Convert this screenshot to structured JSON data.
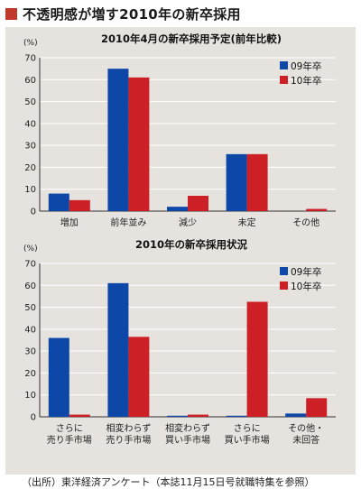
{
  "header": {
    "title": "不透明感が増す2010年の新卒採用"
  },
  "footer": {
    "source": "（出所）東洋経済アンケート（本誌11月15日号就職特集を参照）"
  },
  "colors": {
    "series_09": "#0d47a8",
    "series_10": "#cc1f26",
    "accent": "#c0392b",
    "panel": "#e6e3df"
  },
  "chart_data": [
    {
      "type": "bar",
      "title": "2010年4月の新卒採用予定(前年比較)",
      "ylabel": "(%)",
      "ylim": [
        0,
        70
      ],
      "yticks": [
        0,
        10,
        20,
        30,
        40,
        50,
        60,
        70
      ],
      "grid": true,
      "legend": "top-right",
      "categories": [
        [
          "増加"
        ],
        [
          "前年並み"
        ],
        [
          "減少"
        ],
        [
          "未定"
        ],
        [
          "その他"
        ]
      ],
      "series": [
        {
          "name": "09年卒",
          "values": [
            8,
            65,
            2,
            26,
            0
          ]
        },
        {
          "name": "10年卒",
          "values": [
            5,
            61,
            7,
            26,
            1
          ]
        }
      ]
    },
    {
      "type": "bar",
      "title": "2010年の新卒採用状況",
      "ylabel": "(%)",
      "ylim": [
        0,
        70
      ],
      "yticks": [
        0,
        10,
        20,
        30,
        40,
        50,
        60,
        70
      ],
      "grid": true,
      "legend": "top-right",
      "categories": [
        [
          "さらに",
          "売り手市場"
        ],
        [
          "相変わらず",
          "売り手市場"
        ],
        [
          "相変わらず",
          "買い手市場"
        ],
        [
          "さらに",
          "買い手市場"
        ],
        [
          "その他・",
          "未回答"
        ]
      ],
      "series": [
        {
          "name": "09年卒",
          "values": [
            36,
            61,
            0.5,
            0.5,
            1.5
          ]
        },
        {
          "name": "10年卒",
          "values": [
            1,
            36.5,
            1,
            52.5,
            8.5
          ]
        }
      ]
    }
  ]
}
